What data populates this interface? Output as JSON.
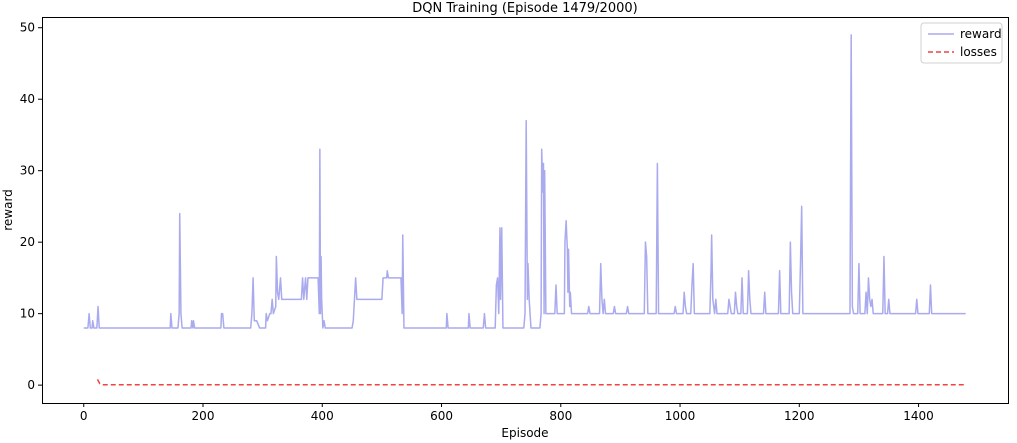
{
  "chart_data": {
    "type": "line",
    "title": "DQN Training (Episode 1479/2000)",
    "xlabel": "Episode",
    "ylabel": "reward",
    "xlim": [
      -70,
      1550
    ],
    "ylim": [
      -2.5,
      51.5
    ],
    "xticks": [
      0,
      200,
      400,
      600,
      800,
      1000,
      1200,
      1400
    ],
    "yticks": [
      0,
      10,
      20,
      30,
      40,
      50
    ],
    "grid": false,
    "legend_position": "top-right",
    "series": [
      {
        "name": "reward",
        "color": "#aaaaee",
        "style": "solid",
        "points": [
          [
            0,
            8
          ],
          [
            7,
            8
          ],
          [
            9,
            10
          ],
          [
            11,
            8
          ],
          [
            14,
            8
          ],
          [
            15,
            9
          ],
          [
            17,
            8
          ],
          [
            22,
            8
          ],
          [
            24,
            11
          ],
          [
            26,
            8
          ],
          [
            145,
            8
          ],
          [
            146,
            10
          ],
          [
            148,
            8
          ],
          [
            158,
            8
          ],
          [
            160,
            10
          ],
          [
            161,
            24
          ],
          [
            163,
            10
          ],
          [
            165,
            8
          ],
          [
            180,
            8
          ],
          [
            181,
            9
          ],
          [
            183,
            8
          ],
          [
            184,
            9
          ],
          [
            186,
            8
          ],
          [
            230,
            8
          ],
          [
            231,
            10
          ],
          [
            233,
            10
          ],
          [
            235,
            8
          ],
          [
            280,
            8
          ],
          [
            282,
            10
          ],
          [
            284,
            15
          ],
          [
            286,
            9
          ],
          [
            290,
            9
          ],
          [
            295,
            8
          ],
          [
            305,
            8
          ],
          [
            306,
            10
          ],
          [
            308,
            9
          ],
          [
            312,
            10
          ],
          [
            314,
            10
          ],
          [
            316,
            12
          ],
          [
            318,
            10
          ],
          [
            322,
            11
          ],
          [
            323,
            18
          ],
          [
            325,
            13
          ],
          [
            327,
            12
          ],
          [
            330,
            15
          ],
          [
            332,
            12
          ],
          [
            365,
            12
          ],
          [
            367,
            15
          ],
          [
            369,
            12
          ],
          [
            372,
            15
          ],
          [
            374,
            12
          ],
          [
            376,
            15
          ],
          [
            393,
            15
          ],
          [
            395,
            10
          ],
          [
            396,
            33
          ],
          [
            397,
            10
          ],
          [
            398,
            18
          ],
          [
            399,
            12
          ],
          [
            401,
            8
          ],
          [
            403,
            9
          ],
          [
            405,
            8
          ],
          [
            450,
            8
          ],
          [
            452,
            9
          ],
          [
            454,
            12
          ],
          [
            456,
            15
          ],
          [
            458,
            12
          ],
          [
            500,
            12
          ],
          [
            502,
            15
          ],
          [
            508,
            15
          ],
          [
            509,
            16
          ],
          [
            511,
            15
          ],
          [
            532,
            15
          ],
          [
            534,
            10
          ],
          [
            535,
            21
          ],
          [
            537,
            8
          ],
          [
            540,
            8
          ],
          [
            608,
            8
          ],
          [
            609,
            10
          ],
          [
            611,
            8
          ],
          [
            645,
            8
          ],
          [
            646,
            10
          ],
          [
            648,
            8
          ],
          [
            670,
            8
          ],
          [
            672,
            10
          ],
          [
            674,
            8
          ],
          [
            690,
            8
          ],
          [
            692,
            14
          ],
          [
            694,
            15
          ],
          [
            696,
            10
          ],
          [
            698,
            22
          ],
          [
            699,
            12
          ],
          [
            701,
            22
          ],
          [
            703,
            8
          ],
          [
            738,
            8
          ],
          [
            740,
            10
          ],
          [
            742,
            37
          ],
          [
            744,
            12
          ],
          [
            745,
            17
          ],
          [
            747,
            12
          ],
          [
            750,
            8
          ],
          [
            765,
            8
          ],
          [
            767,
            10
          ],
          [
            768,
            33
          ],
          [
            770,
            27
          ],
          [
            771,
            31
          ],
          [
            772,
            10
          ],
          [
            773,
            30
          ],
          [
            775,
            10
          ],
          [
            790,
            10
          ],
          [
            792,
            14
          ],
          [
            794,
            10
          ],
          [
            806,
            10
          ],
          [
            807,
            20
          ],
          [
            809,
            23
          ],
          [
            811,
            19
          ],
          [
            812,
            13
          ],
          [
            813,
            19
          ],
          [
            815,
            11
          ],
          [
            816,
            13
          ],
          [
            818,
            10
          ],
          [
            845,
            10
          ],
          [
            847,
            11
          ],
          [
            849,
            10
          ],
          [
            865,
            10
          ],
          [
            867,
            17
          ],
          [
            869,
            12
          ],
          [
            871,
            10
          ],
          [
            873,
            12
          ],
          [
            875,
            10
          ],
          [
            888,
            10
          ],
          [
            890,
            11
          ],
          [
            892,
            10
          ],
          [
            910,
            10
          ],
          [
            912,
            11
          ],
          [
            914,
            10
          ],
          [
            940,
            10
          ],
          [
            942,
            20
          ],
          [
            944,
            18
          ],
          [
            946,
            10
          ],
          [
            960,
            10
          ],
          [
            962,
            31
          ],
          [
            964,
            10
          ],
          [
            990,
            10
          ],
          [
            992,
            11
          ],
          [
            994,
            10
          ],
          [
            1005,
            10
          ],
          [
            1007,
            13
          ],
          [
            1009,
            11
          ],
          [
            1011,
            10
          ],
          [
            1018,
            10
          ],
          [
            1020,
            14
          ],
          [
            1022,
            17
          ],
          [
            1024,
            10
          ],
          [
            1050,
            10
          ],
          [
            1052,
            16
          ],
          [
            1053,
            21
          ],
          [
            1055,
            12
          ],
          [
            1058,
            10
          ],
          [
            1060,
            12
          ],
          [
            1062,
            10
          ],
          [
            1080,
            10
          ],
          [
            1082,
            12
          ],
          [
            1084,
            11
          ],
          [
            1086,
            10
          ],
          [
            1091,
            10
          ],
          [
            1093,
            13
          ],
          [
            1095,
            11
          ],
          [
            1097,
            10
          ],
          [
            1102,
            10
          ],
          [
            1104,
            15
          ],
          [
            1106,
            10
          ],
          [
            1113,
            10
          ],
          [
            1115,
            16
          ],
          [
            1117,
            12
          ],
          [
            1119,
            10
          ],
          [
            1140,
            10
          ],
          [
            1142,
            13
          ],
          [
            1144,
            10
          ],
          [
            1165,
            10
          ],
          [
            1167,
            16
          ],
          [
            1169,
            10
          ],
          [
            1183,
            10
          ],
          [
            1185,
            20
          ],
          [
            1187,
            13
          ],
          [
            1189,
            10
          ],
          [
            1200,
            10
          ],
          [
            1202,
            17
          ],
          [
            1204,
            25
          ],
          [
            1206,
            10
          ],
          [
            1285,
            10
          ],
          [
            1286,
            30
          ],
          [
            1287,
            49
          ],
          [
            1289,
            11
          ],
          [
            1291,
            10
          ],
          [
            1298,
            10
          ],
          [
            1300,
            17
          ],
          [
            1302,
            10
          ],
          [
            1310,
            10
          ],
          [
            1312,
            13
          ],
          [
            1314,
            10
          ],
          [
            1316,
            15
          ],
          [
            1318,
            12
          ],
          [
            1320,
            11
          ],
          [
            1322,
            12
          ],
          [
            1324,
            10
          ],
          [
            1340,
            10
          ],
          [
            1342,
            18
          ],
          [
            1344,
            10
          ],
          [
            1348,
            10
          ],
          [
            1350,
            12
          ],
          [
            1352,
            10
          ],
          [
            1395,
            10
          ],
          [
            1397,
            12
          ],
          [
            1399,
            10
          ],
          [
            1418,
            10
          ],
          [
            1420,
            14
          ],
          [
            1422,
            10
          ],
          [
            1479,
            10
          ]
        ]
      },
      {
        "name": "losses",
        "color": "#ee4444",
        "style": "dashed",
        "points": [
          [
            23,
            0.8
          ],
          [
            27,
            0.2
          ],
          [
            32,
            0.05
          ],
          [
            1479,
            0.05
          ]
        ]
      }
    ]
  }
}
